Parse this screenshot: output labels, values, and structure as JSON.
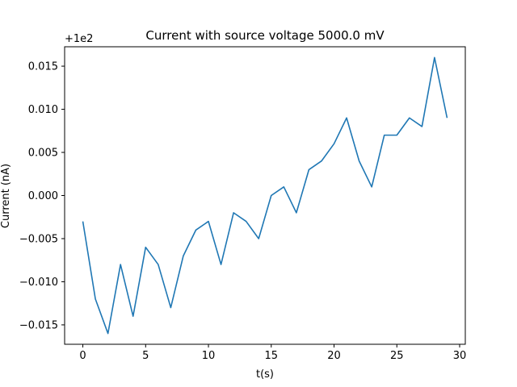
{
  "chart_data": {
    "type": "line",
    "title": "Current with source voltage 5000.0 mV",
    "xlabel": "t(s)",
    "ylabel": "Current (nA)",
    "offset_label": "+1e2",
    "xlim": [
      -1.45,
      30.45
    ],
    "ylim": [
      -0.01725,
      0.01725
    ],
    "x_ticks": [
      0,
      5,
      10,
      15,
      20,
      25,
      30
    ],
    "x_tick_labels": [
      "0",
      "5",
      "10",
      "15",
      "20",
      "25",
      "30"
    ],
    "y_ticks": [
      -0.015,
      -0.01,
      -0.005,
      0.0,
      0.005,
      0.01,
      0.015
    ],
    "y_tick_labels": [
      "−0.015",
      "−0.010",
      "−0.005",
      "0.000",
      "0.005",
      "0.010",
      "0.015"
    ],
    "grid": false,
    "series": [
      {
        "color": "#1f77b4",
        "x": [
          0,
          1,
          2,
          3,
          4,
          5,
          6,
          7,
          8,
          9,
          10,
          11,
          12,
          13,
          14,
          15,
          16,
          17,
          18,
          19,
          20,
          21,
          22,
          23,
          24,
          25,
          26,
          27,
          28,
          29
        ],
        "values": [
          -0.003,
          -0.012,
          -0.016,
          -0.008,
          -0.014,
          -0.006,
          -0.008,
          -0.013,
          -0.007,
          -0.004,
          -0.003,
          -0.008,
          -0.002,
          -0.003,
          -0.005,
          0.0,
          0.001,
          -0.002,
          0.003,
          0.004,
          0.006,
          0.009,
          0.004,
          0.001,
          0.007,
          0.007,
          0.009,
          0.008,
          0.016,
          0.009
        ]
      }
    ]
  }
}
